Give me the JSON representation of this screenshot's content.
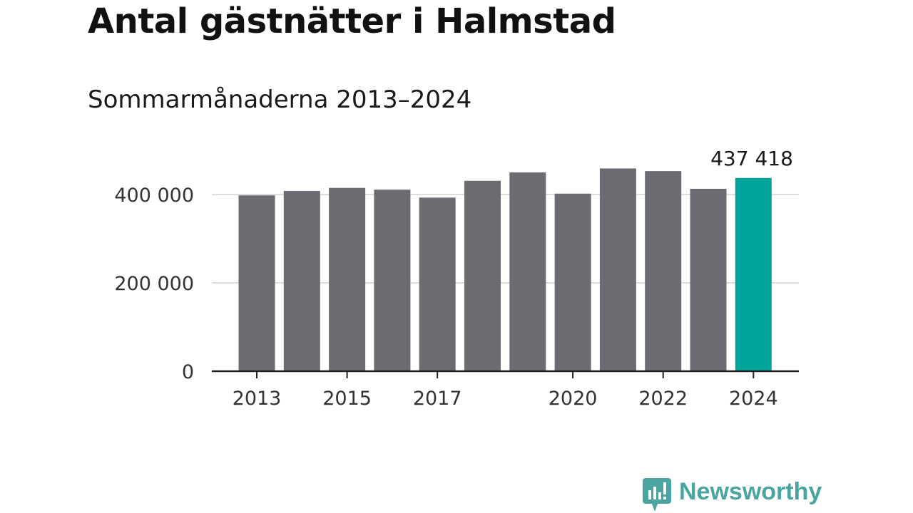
{
  "title": "Antal gästnätter i Halmstad",
  "subtitle": "Sommarmånaderna 2013–2024",
  "chart_data": {
    "type": "bar",
    "categories": [
      "2013",
      "2014",
      "2015",
      "2016",
      "2017",
      "2018",
      "2019",
      "2020",
      "2021",
      "2022",
      "2023",
      "2024"
    ],
    "values": [
      398000,
      408000,
      415000,
      411000,
      393000,
      431000,
      450000,
      402000,
      459000,
      453000,
      413000,
      437418
    ],
    "ylim": [
      0,
      560000
    ],
    "yticks": [
      0,
      200000,
      400000
    ],
    "ytick_labels": [
      "0",
      "200 000",
      "400 000"
    ],
    "xtick_labels": [
      "2013",
      "2015",
      "2017",
      "2020",
      "2022",
      "2024"
    ],
    "highlight_index": 11,
    "highlight_label": "437 418",
    "colors": {
      "bar": "#6c6b72",
      "highlight": "#00a49a",
      "grid": "#dddddd",
      "axis": "#222222"
    },
    "grid": true
  },
  "logo": {
    "text": "Newsworthy",
    "color": "#4aa5a0"
  }
}
